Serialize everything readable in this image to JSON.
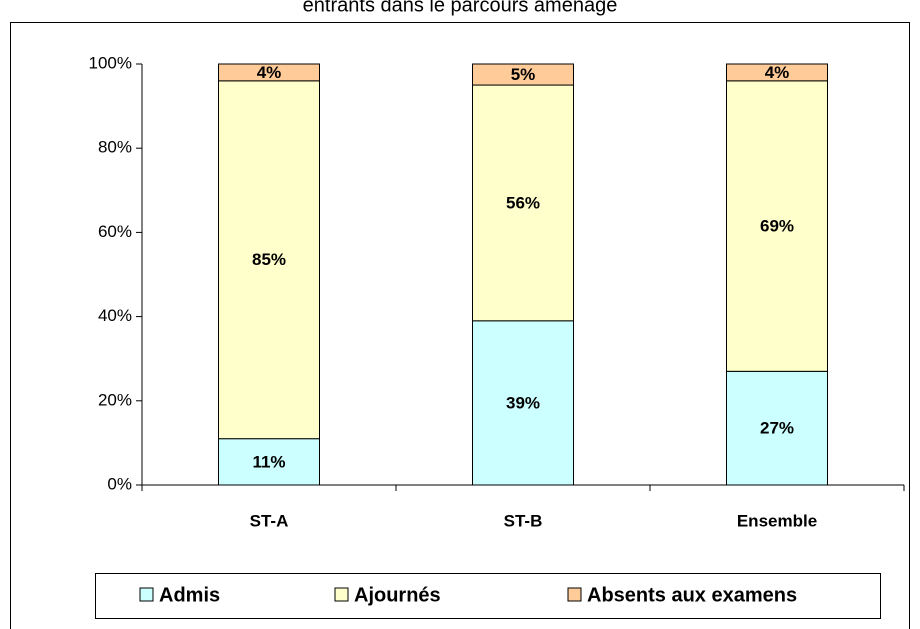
{
  "chart_data": {
    "type": "stacked_bar",
    "title": "entrants dans le parcours aménagé",
    "categories": [
      "ST-A",
      "ST-B",
      "Ensemble"
    ],
    "series": [
      {
        "name": "Admis",
        "color": "#ccffff",
        "values": [
          11,
          39,
          27
        ],
        "value_labels": [
          "11%",
          "39%",
          "27%"
        ]
      },
      {
        "name": "Ajournés",
        "color": "#ffffcc",
        "values": [
          85,
          56,
          69
        ],
        "value_labels": [
          "85%",
          "56%",
          "69%"
        ]
      },
      {
        "name": "Absents aux examens",
        "color": "#ffcc99",
        "values": [
          4,
          5,
          4
        ],
        "value_labels": [
          "4%",
          "5%",
          "4%"
        ]
      }
    ],
    "ylim": [
      0,
      100
    ],
    "yticks": [
      {
        "value": 0,
        "label": "0%"
      },
      {
        "value": 20,
        "label": "20%"
      },
      {
        "value": 40,
        "label": "40%"
      },
      {
        "value": 60,
        "label": "60%"
      },
      {
        "value": 80,
        "label": "80%"
      },
      {
        "value": 100,
        "label": "100%"
      }
    ],
    "legend": "bottom"
  }
}
